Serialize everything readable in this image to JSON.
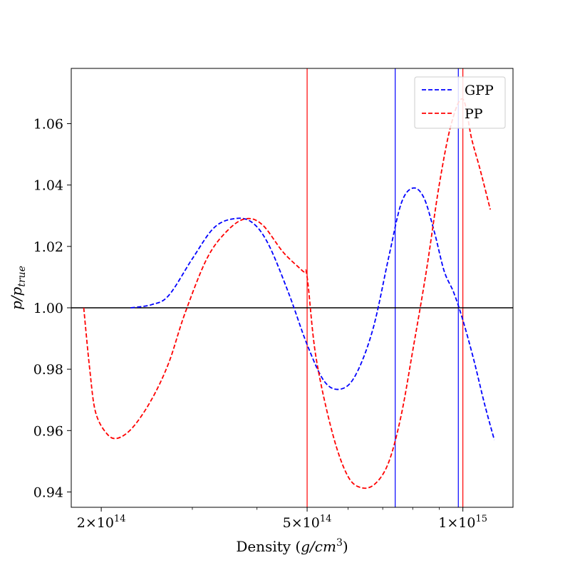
{
  "chart_data": {
    "type": "line",
    "title": "",
    "xlabel": "Density",
    "xlabel_unit_parts": [
      "(",
      "g/cm",
      "3",
      ")"
    ],
    "ylabel_parts": [
      "p/p",
      "true"
    ],
    "xscale": "log",
    "xlim": [
      175000000000000,
      1250000000000000
    ],
    "ylim": [
      0.935,
      1.078
    ],
    "x_ticks": [
      {
        "value": 200000000000000,
        "mant": "2",
        "exp": "14"
      },
      {
        "value": 500000000000000,
        "mant": "5",
        "exp": "14"
      },
      {
        "value": 1000000000000000,
        "mant": "1",
        "exp": "15"
      }
    ],
    "y_ticks": [
      "0.94",
      "0.96",
      "0.98",
      "1.00",
      "1.02",
      "1.04",
      "1.06"
    ],
    "grid": false,
    "legend_position": "top-right",
    "hlines": [
      {
        "y": 1.0,
        "color": "#000000"
      }
    ],
    "vlines": [
      {
        "x": 500000000000000,
        "color": "#ff0000"
      },
      {
        "x": 740000000000000,
        "color": "#0000ff"
      },
      {
        "x": 980000000000000,
        "color": "#0000ff"
      },
      {
        "x": 1000000000000000,
        "color": "#ff0000"
      }
    ],
    "series": [
      {
        "name": "GPP",
        "color": "#0000ff",
        "style": "dashed",
        "x": [
          228000000000000,
          250000000000000,
          270000000000000,
          300000000000000,
          330000000000000,
          360000000000000,
          390000000000000,
          420000000000000,
          460000000000000,
          500000000000000,
          540000000000000,
          580000000000000,
          620000000000000,
          670000000000000,
          720000000000000,
          760000000000000,
          800000000000000,
          840000000000000,
          880000000000000,
          920000000000000,
          960000000000000,
          1000000000000000,
          1050000000000000,
          1100000000000000,
          1150000000000000
        ],
        "y": [
          1.0,
          1.001,
          1.004,
          1.016,
          1.026,
          1.029,
          1.028,
          1.021,
          1.005,
          0.988,
          0.976,
          0.9735,
          0.978,
          0.993,
          1.017,
          1.034,
          1.039,
          1.036,
          1.025,
          1.012,
          1.005,
          0.996,
          0.983,
          0.969,
          0.957
        ]
      },
      {
        "name": "PP",
        "color": "#ff0000",
        "style": "dashed",
        "x": [
          185000000000000,
          190000000000000,
          195000000000000,
          205000000000000,
          215000000000000,
          230000000000000,
          250000000000000,
          270000000000000,
          290000000000000,
          320000000000000,
          350000000000000,
          380000000000000,
          410000000000000,
          450000000000000,
          490000000000000,
          500000000000000,
          520000000000000,
          560000000000000,
          600000000000000,
          640000000000000,
          680000000000000,
          720000000000000,
          760000000000000,
          800000000000000,
          850000000000000,
          900000000000000,
          950000000000000,
          1000000000000000,
          1040000000000000,
          1080000000000000,
          1130000000000000
        ],
        "y": [
          1.0,
          0.98,
          0.966,
          0.959,
          0.9575,
          0.961,
          0.97,
          0.982,
          0.998,
          1.016,
          1.025,
          1.029,
          1.027,
          1.018,
          1.012,
          1.01,
          0.984,
          0.959,
          0.945,
          0.9413,
          0.943,
          0.95,
          0.965,
          0.986,
          1.012,
          1.04,
          1.06,
          1.068,
          1.055,
          1.045,
          1.032
        ]
      }
    ]
  }
}
